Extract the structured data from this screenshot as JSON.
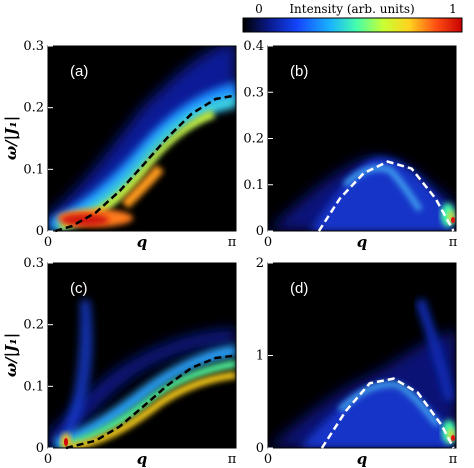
{
  "colorbar": {
    "label": "Intensity (arb. units)",
    "min_label": "0",
    "max_label": "1",
    "colormap": [
      "#000000",
      "#0a1a8c",
      "#1446ff",
      "#19b4ff",
      "#46ffaa",
      "#c8ff32",
      "#ffd21e",
      "#ff5014",
      "#c80000"
    ]
  },
  "ylabel": "ω/|J₁|",
  "xlabel": "q",
  "x_tick_labels": [
    "0",
    "π"
  ],
  "chart_data": [
    {
      "type": "heatmap",
      "panel": "(a)",
      "ylim": [
        0,
        0.3
      ],
      "y_ticks": [
        "0",
        "0.1",
        "0.2",
        "0.3"
      ],
      "xlim": [
        0,
        3.1416
      ],
      "dispersion": {
        "style": "black dashed",
        "x": [
          0.12,
          0.4,
          0.8,
          1.2,
          1.6,
          2.0,
          2.4,
          2.8,
          3.14
        ],
        "y": [
          0.0,
          0.008,
          0.03,
          0.065,
          0.108,
          0.152,
          0.19,
          0.214,
          0.22
        ]
      },
      "intensity_peak": "maximum near q≈0.4–1.3, ω≈0.02–0.05"
    },
    {
      "type": "heatmap",
      "panel": "(b)",
      "ylim": [
        0,
        0.4
      ],
      "y_ticks": [
        "0",
        "0.1",
        "0.2",
        "0.3",
        "0.4"
      ],
      "xlim": [
        0,
        3.1416
      ],
      "dispersion": {
        "style": "white dashed",
        "x": [
          0.85,
          1.2,
          1.6,
          2.0,
          2.4,
          2.8,
          3.1
        ],
        "y": [
          0.0,
          0.07,
          0.125,
          0.15,
          0.135,
          0.07,
          0.0
        ]
      },
      "intensity_peak": "bright spot at q≈π, ω≈0.03"
    },
    {
      "type": "heatmap",
      "panel": "(c)",
      "ylim": [
        0,
        0.3
      ],
      "y_ticks": [
        "0",
        "0.1",
        "0.2",
        "0.3"
      ],
      "xlim": [
        0,
        3.1416
      ],
      "dispersion": {
        "style": "black dashed",
        "x": [
          0.3,
          0.8,
          1.2,
          1.6,
          2.0,
          2.4,
          2.8,
          3.14
        ],
        "y": [
          0.0,
          0.012,
          0.035,
          0.068,
          0.102,
          0.13,
          0.146,
          0.15
        ]
      },
      "intensity_peak": "bright spot at q≈0.3, ω≈0.01"
    },
    {
      "type": "heatmap",
      "panel": "(d)",
      "ylim": [
        0,
        2
      ],
      "y_ticks": [
        "0",
        "1",
        "2"
      ],
      "xlim": [
        0,
        3.1416
      ],
      "dispersion": {
        "style": "white dashed",
        "x": [
          0.9,
          1.3,
          1.7,
          2.1,
          2.5,
          2.9,
          3.1
        ],
        "y": [
          0.0,
          0.4,
          0.7,
          0.75,
          0.6,
          0.25,
          0.0
        ]
      },
      "intensity_peak": "bright spot at q≈π, ω≈0.1"
    }
  ]
}
